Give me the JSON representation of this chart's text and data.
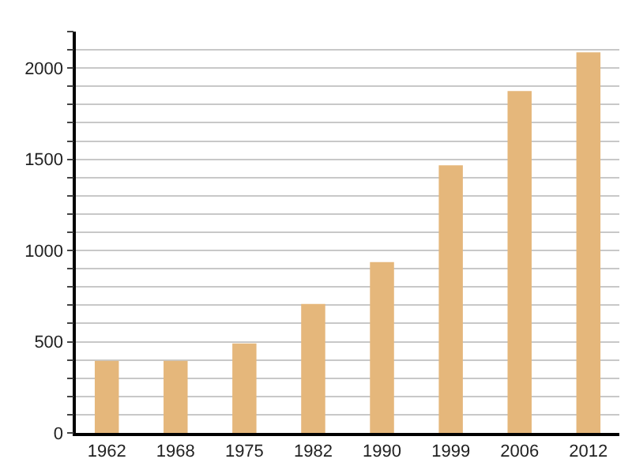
{
  "chart_data": {
    "type": "bar",
    "categories": [
      "1962",
      "1968",
      "1975",
      "1982",
      "1990",
      "1999",
      "2006",
      "2012"
    ],
    "values": [
      395,
      395,
      490,
      707,
      937,
      1467,
      1874,
      2086
    ],
    "color": "#e5b77b",
    "ylim": [
      0,
      2200
    ],
    "yticks": [
      0,
      {
        "value": 100,
        "label": null
      },
      {
        "value": 200,
        "label": null
      },
      {
        "value": 300,
        "label": null
      },
      {
        "value": 400,
        "label": null
      },
      500,
      {
        "value": 600,
        "label": null
      },
      {
        "value": 700,
        "label": null
      },
      {
        "value": 800,
        "label": null
      },
      {
        "value": 900,
        "label": null
      },
      1000,
      {
        "value": 1100,
        "label": null
      },
      {
        "value": 1200,
        "label": null
      },
      {
        "value": 1300,
        "label": null
      },
      {
        "value": 1400,
        "label": null
      },
      1500,
      {
        "value": 1600,
        "label": null
      },
      {
        "value": 1700,
        "label": null
      },
      {
        "value": 1800,
        "label": null
      },
      {
        "value": 1900,
        "label": null
      },
      2000,
      {
        "value": 2100,
        "label": null
      },
      {
        "value": 2200,
        "label": null
      }
    ],
    "grid": "y"
  }
}
